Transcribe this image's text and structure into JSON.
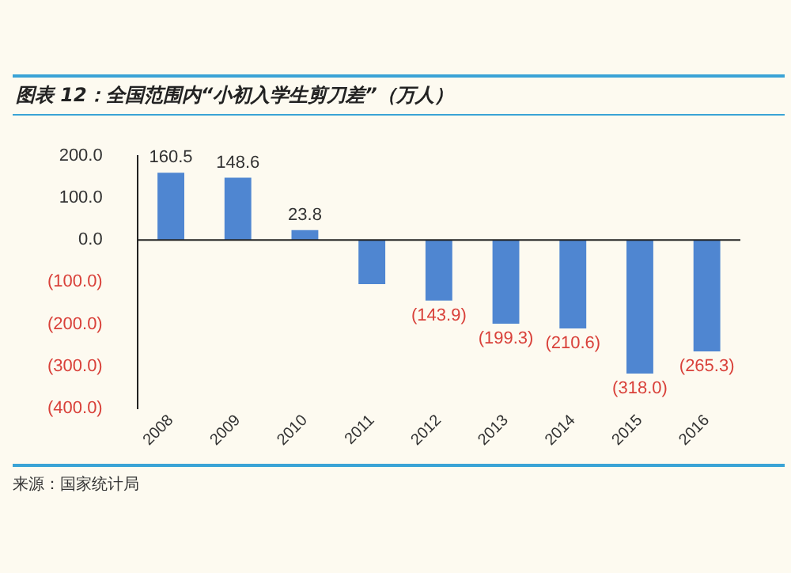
{
  "chart_data": {
    "type": "bar",
    "title": "图表 12：全国范围内“小初入学生剪刀差”（万人）",
    "categories": [
      "2008",
      "2009",
      "2010",
      "2011",
      "2012",
      "2013",
      "2014",
      "2015",
      "2016"
    ],
    "values": [
      160.5,
      148.6,
      23.8,
      -105,
      -143.9,
      -199.3,
      -210.6,
      -318.0,
      -265.3
    ],
    "value_labels": [
      "160.5",
      "148.6",
      "23.8",
      null,
      "(143.9)",
      "(199.3)",
      "(210.6)",
      "(318.0)",
      "(265.3)"
    ],
    "color": "#4f86d1",
    "ylim": [
      -400,
      200
    ],
    "yticks": [
      {
        "value": 200,
        "label": "200.0"
      },
      {
        "value": 100,
        "label": "100.0"
      },
      {
        "value": 0,
        "label": "0.0"
      },
      {
        "value": -100,
        "label": "(100.0)"
      },
      {
        "value": -200,
        "label": "(200.0)"
      },
      {
        "value": -300,
        "label": "(300.0)"
      },
      {
        "value": -400,
        "label": "(400.0)"
      }
    ],
    "grid": false,
    "ref_lines": [
      {
        "axis": "y",
        "value": 0,
        "color": "#222222"
      }
    ],
    "annotations": [
      "来源：国家统计局"
    ]
  }
}
